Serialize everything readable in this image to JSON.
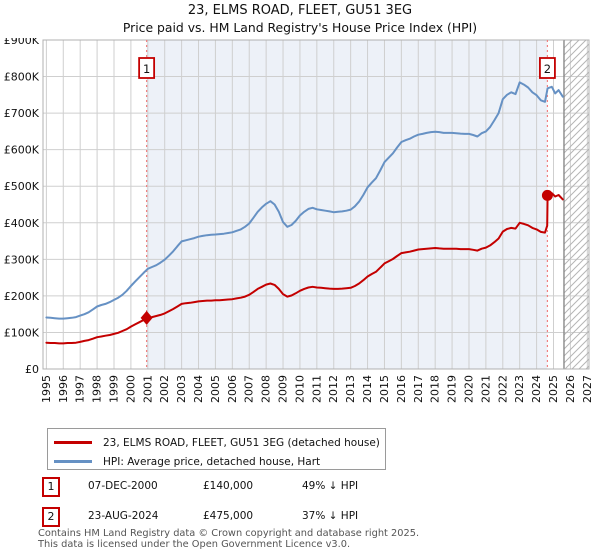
{
  "title": "23, ELMS ROAD, FLEET, GU51 3EG",
  "subtitle": "Price paid vs. HM Land Registry's House Price Index (HPI)",
  "legend": [
    {
      "label": "23, ELMS ROAD, FLEET, GU51 3EG (detached house)",
      "color": "#c40000"
    },
    {
      "label": "HPI: Average price, detached house, Hart",
      "color": "#6691c4"
    }
  ],
  "events": [
    {
      "num": "1",
      "date": "07-DEC-2000",
      "price": "£140,000",
      "vs_hpi": "49% ↓ HPI"
    },
    {
      "num": "2",
      "date": "23-AUG-2024",
      "price": "£475,000",
      "vs_hpi": "37% ↓ HPI"
    }
  ],
  "footer": {
    "line1": "Contains HM Land Registry data © Crown copyright and database right 2025.",
    "line2": "This data is licensed under the Open Government Licence v3.0."
  },
  "chart_data": {
    "type": "line",
    "title": "23, ELMS ROAD, FLEET, GU51 3EG — Price paid vs. HPI",
    "unit": "GBP thousands",
    "xlim": [
      1994.8,
      2027.1
    ],
    "ylim_k": [
      0,
      900
    ],
    "grid": true,
    "x_ticks": [
      1995,
      1996,
      1997,
      1998,
      1999,
      2000,
      2001,
      2002,
      2003,
      2004,
      2005,
      2006,
      2007,
      2008,
      2009,
      2010,
      2011,
      2012,
      2013,
      2014,
      2015,
      2016,
      2017,
      2018,
      2019,
      2020,
      2021,
      2022,
      2023,
      2024,
      2025,
      2026,
      2027
    ],
    "y_ticks_k": [
      0,
      100,
      200,
      300,
      400,
      500,
      600,
      700,
      800,
      900
    ],
    "y_tick_labels": [
      "£0",
      "£100K",
      "£200K",
      "£300K",
      "£400K",
      "£500K",
      "£600K",
      "£700K",
      "£800K",
      "£900K"
    ],
    "colors": {
      "shade": "#edf1f8",
      "grid": "#cfcfcf",
      "border": "#b0b0b0",
      "dashed": "#f08080",
      "hatch": "#b5b5b5",
      "hatch_edge": "#8a8a8a",
      "marker_box_border": "#c40000",
      "text": "#111111"
    },
    "shaded_region": {
      "from": 2000.93,
      "to": 2024.64
    },
    "hatched_region": {
      "from": 2025.62,
      "to": 2027.1
    },
    "markers": [
      {
        "label": "1",
        "x": 2000.93,
        "y_k": 140,
        "shape": "diamond"
      },
      {
        "label": "2",
        "x": 2024.64,
        "y_k": 475,
        "shape": "circle"
      }
    ],
    "series": [
      {
        "name": "HPI: Average price, detached house, Hart",
        "color": "#6691c4",
        "points_k": [
          [
            1995,
            141
          ],
          [
            1995.25,
            140
          ],
          [
            1995.5,
            139
          ],
          [
            1995.75,
            138
          ],
          [
            1996,
            138
          ],
          [
            1996.25,
            139
          ],
          [
            1996.5,
            140
          ],
          [
            1996.75,
            142
          ],
          [
            1997,
            146
          ],
          [
            1997.25,
            150
          ],
          [
            1997.5,
            155
          ],
          [
            1997.75,
            163
          ],
          [
            1998,
            171
          ],
          [
            1998.25,
            175
          ],
          [
            1998.5,
            178
          ],
          [
            1998.75,
            183
          ],
          [
            1999,
            189
          ],
          [
            1999.25,
            195
          ],
          [
            1999.5,
            203
          ],
          [
            1999.75,
            214
          ],
          [
            2000,
            227
          ],
          [
            2000.25,
            239
          ],
          [
            2000.5,
            251
          ],
          [
            2000.75,
            263
          ],
          [
            2001,
            274
          ],
          [
            2001.25,
            279
          ],
          [
            2001.5,
            284
          ],
          [
            2001.75,
            291
          ],
          [
            2002,
            299
          ],
          [
            2002.25,
            310
          ],
          [
            2002.5,
            322
          ],
          [
            2002.75,
            336
          ],
          [
            2003,
            349
          ],
          [
            2003.25,
            352
          ],
          [
            2003.5,
            355
          ],
          [
            2003.75,
            358
          ],
          [
            2004,
            362
          ],
          [
            2004.25,
            364
          ],
          [
            2004.5,
            366
          ],
          [
            2004.75,
            367
          ],
          [
            2005,
            368
          ],
          [
            2005.25,
            369
          ],
          [
            2005.5,
            370
          ],
          [
            2005.75,
            372
          ],
          [
            2006,
            374
          ],
          [
            2006.25,
            378
          ],
          [
            2006.5,
            382
          ],
          [
            2006.75,
            389
          ],
          [
            2007,
            398
          ],
          [
            2007.25,
            414
          ],
          [
            2007.5,
            430
          ],
          [
            2007.75,
            442
          ],
          [
            2008,
            452
          ],
          [
            2008.25,
            459
          ],
          [
            2008.5,
            450
          ],
          [
            2008.75,
            430
          ],
          [
            2009,
            402
          ],
          [
            2009.25,
            389
          ],
          [
            2009.5,
            394
          ],
          [
            2009.75,
            405
          ],
          [
            2010,
            420
          ],
          [
            2010.25,
            430
          ],
          [
            2010.5,
            438
          ],
          [
            2010.75,
            441
          ],
          [
            2011,
            437
          ],
          [
            2011.25,
            435
          ],
          [
            2011.5,
            433
          ],
          [
            2011.75,
            431
          ],
          [
            2012,
            429
          ],
          [
            2012.25,
            430
          ],
          [
            2012.5,
            431
          ],
          [
            2012.75,
            433
          ],
          [
            2013,
            436
          ],
          [
            2013.25,
            445
          ],
          [
            2013.5,
            458
          ],
          [
            2013.75,
            476
          ],
          [
            2014,
            497
          ],
          [
            2014.25,
            510
          ],
          [
            2014.5,
            522
          ],
          [
            2014.75,
            543
          ],
          [
            2015,
            566
          ],
          [
            2015.25,
            578
          ],
          [
            2015.5,
            590
          ],
          [
            2015.75,
            606
          ],
          [
            2016,
            621
          ],
          [
            2016.25,
            626
          ],
          [
            2016.5,
            630
          ],
          [
            2016.75,
            636
          ],
          [
            2017,
            641
          ],
          [
            2017.25,
            643
          ],
          [
            2017.5,
            646
          ],
          [
            2017.75,
            648
          ],
          [
            2018,
            649
          ],
          [
            2018.25,
            648
          ],
          [
            2018.5,
            646
          ],
          [
            2018.75,
            646
          ],
          [
            2019,
            646
          ],
          [
            2019.25,
            645
          ],
          [
            2019.5,
            644
          ],
          [
            2019.75,
            643
          ],
          [
            2020,
            643
          ],
          [
            2020.25,
            640
          ],
          [
            2020.5,
            636
          ],
          [
            2020.75,
            645
          ],
          [
            2021,
            650
          ],
          [
            2021.25,
            662
          ],
          [
            2021.5,
            680
          ],
          [
            2021.75,
            700
          ],
          [
            2022,
            738
          ],
          [
            2022.25,
            750
          ],
          [
            2022.5,
            757
          ],
          [
            2022.75,
            752
          ],
          [
            2023,
            784
          ],
          [
            2023.25,
            778
          ],
          [
            2023.5,
            770
          ],
          [
            2023.75,
            757
          ],
          [
            2024,
            749
          ],
          [
            2024.25,
            735
          ],
          [
            2024.5,
            731
          ],
          [
            2024.65,
            768
          ],
          [
            2024.9,
            772
          ],
          [
            2025.1,
            754
          ],
          [
            2025.3,
            763
          ],
          [
            2025.55,
            745
          ]
        ]
      },
      {
        "name": "23, ELMS ROAD, FLEET, GU51 3EG (detached house)",
        "color": "#c40000",
        "points_k": [
          [
            1995,
            72
          ],
          [
            1995.25,
            71
          ],
          [
            1995.5,
            71
          ],
          [
            1995.75,
            70
          ],
          [
            1996,
            70
          ],
          [
            1996.25,
            71
          ],
          [
            1996.5,
            71
          ],
          [
            1996.75,
            72
          ],
          [
            1997,
            74
          ],
          [
            1997.25,
            77
          ],
          [
            1997.5,
            79
          ],
          [
            1997.75,
            83
          ],
          [
            1998,
            87
          ],
          [
            1998.25,
            89
          ],
          [
            1998.5,
            91
          ],
          [
            1998.75,
            93
          ],
          [
            1999,
            96
          ],
          [
            1999.25,
            99
          ],
          [
            1999.5,
            104
          ],
          [
            1999.75,
            109
          ],
          [
            2000,
            116
          ],
          [
            2000.25,
            122
          ],
          [
            2000.5,
            128
          ],
          [
            2000.75,
            134
          ],
          [
            2001,
            140
          ],
          [
            2001.25,
            142
          ],
          [
            2001.5,
            145
          ],
          [
            2001.75,
            148
          ],
          [
            2002,
            152
          ],
          [
            2002.25,
            158
          ],
          [
            2002.5,
            164
          ],
          [
            2002.75,
            171
          ],
          [
            2003,
            178
          ],
          [
            2003.25,
            180
          ],
          [
            2003.5,
            181
          ],
          [
            2003.75,
            183
          ],
          [
            2004,
            185
          ],
          [
            2004.25,
            186
          ],
          [
            2004.5,
            187
          ],
          [
            2004.75,
            187
          ],
          [
            2005,
            188
          ],
          [
            2005.25,
            188
          ],
          [
            2005.5,
            189
          ],
          [
            2005.75,
            190
          ],
          [
            2006,
            191
          ],
          [
            2006.25,
            193
          ],
          [
            2006.5,
            195
          ],
          [
            2006.75,
            198
          ],
          [
            2007,
            203
          ],
          [
            2007.25,
            211
          ],
          [
            2007.5,
            219
          ],
          [
            2007.75,
            225
          ],
          [
            2008,
            231
          ],
          [
            2008.25,
            234
          ],
          [
            2008.5,
            230
          ],
          [
            2008.75,
            219
          ],
          [
            2009,
            205
          ],
          [
            2009.25,
            198
          ],
          [
            2009.5,
            201
          ],
          [
            2009.75,
            207
          ],
          [
            2010,
            214
          ],
          [
            2010.25,
            219
          ],
          [
            2010.5,
            223
          ],
          [
            2010.75,
            225
          ],
          [
            2011,
            223
          ],
          [
            2011.25,
            222
          ],
          [
            2011.5,
            221
          ],
          [
            2011.75,
            220
          ],
          [
            2012,
            219
          ],
          [
            2012.25,
            219
          ],
          [
            2012.5,
            220
          ],
          [
            2012.75,
            221
          ],
          [
            2013,
            222
          ],
          [
            2013.25,
            227
          ],
          [
            2013.5,
            234
          ],
          [
            2013.75,
            243
          ],
          [
            2014,
            253
          ],
          [
            2014.25,
            260
          ],
          [
            2014.5,
            266
          ],
          [
            2014.75,
            277
          ],
          [
            2015,
            289
          ],
          [
            2015.25,
            295
          ],
          [
            2015.5,
            301
          ],
          [
            2015.75,
            309
          ],
          [
            2016,
            317
          ],
          [
            2016.25,
            319
          ],
          [
            2016.5,
            321
          ],
          [
            2016.75,
            324
          ],
          [
            2017,
            327
          ],
          [
            2017.25,
            328
          ],
          [
            2017.5,
            329
          ],
          [
            2017.75,
            330
          ],
          [
            2018,
            331
          ],
          [
            2018.25,
            330
          ],
          [
            2018.5,
            329
          ],
          [
            2018.75,
            329
          ],
          [
            2019,
            329
          ],
          [
            2019.25,
            329
          ],
          [
            2019.5,
            328
          ],
          [
            2019.75,
            328
          ],
          [
            2020,
            328
          ],
          [
            2020.25,
            326
          ],
          [
            2020.5,
            324
          ],
          [
            2020.75,
            329
          ],
          [
            2021,
            332
          ],
          [
            2021.25,
            338
          ],
          [
            2021.5,
            347
          ],
          [
            2021.75,
            357
          ],
          [
            2022,
            376
          ],
          [
            2022.25,
            383
          ],
          [
            2022.5,
            386
          ],
          [
            2022.75,
            384
          ],
          [
            2023,
            400
          ],
          [
            2023.25,
            397
          ],
          [
            2023.5,
            393
          ],
          [
            2023.75,
            386
          ],
          [
            2024,
            382
          ],
          [
            2024.25,
            375
          ],
          [
            2024.5,
            373
          ],
          [
            2024.63,
            392
          ],
          [
            2024.65,
            475
          ],
          [
            2024.9,
            481
          ],
          [
            2025.1,
            472
          ],
          [
            2025.3,
            476
          ],
          [
            2025.55,
            464
          ]
        ]
      }
    ]
  }
}
